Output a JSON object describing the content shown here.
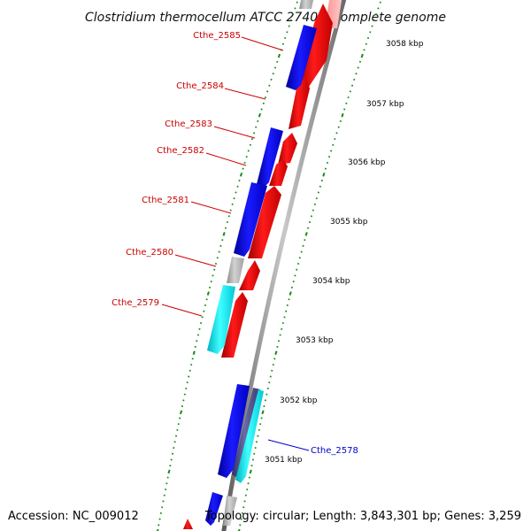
{
  "title": "Clostridium thermocellum ATCC 27405, complete genome",
  "accession": "Accession: NC_009012",
  "summary": "Topology: circular; Length: 3,843,301 bp; Genes: 3,259",
  "colors": {
    "label_red": "#cc0000",
    "label_blue": "#0000cc",
    "forward_gene": "#ff0000",
    "reverse_gene": "#0000ff",
    "other_gene": "#b8b8b8",
    "rna_gene": "#00ffff",
    "backbone": "#8a8a8a",
    "tick": "#1a8a1a"
  },
  "kbp_ticks": [
    {
      "label": "3058 kbp"
    },
    {
      "label": "3057 kbp"
    },
    {
      "label": "3056 kbp"
    },
    {
      "label": "3055 kbp"
    },
    {
      "label": "3054 kbp"
    },
    {
      "label": "3053 kbp"
    },
    {
      "label": "3052 kbp"
    },
    {
      "label": "3051 kbp"
    }
  ],
  "gene_labels": [
    {
      "name": "Cthe_2585",
      "color": "#cc0000"
    },
    {
      "name": "Cthe_2584",
      "color": "#cc0000"
    },
    {
      "name": "Cthe_2583",
      "color": "#cc0000"
    },
    {
      "name": "Cthe_2582",
      "color": "#cc0000"
    },
    {
      "name": "Cthe_2581",
      "color": "#cc0000"
    },
    {
      "name": "Cthe_2580",
      "color": "#cc0000"
    },
    {
      "name": "Cthe_2579",
      "color": "#cc0000"
    },
    {
      "name": "Cthe_2578",
      "color": "#0000cc"
    }
  ]
}
